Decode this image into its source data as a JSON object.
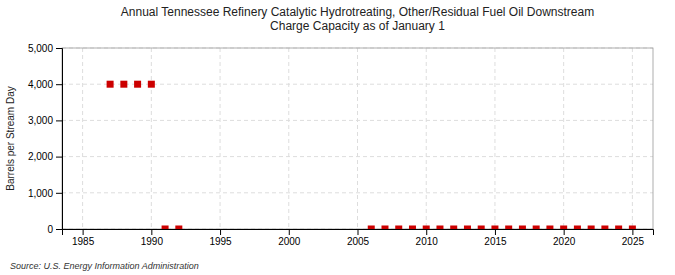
{
  "chart_data": {
    "type": "scatter",
    "title": "Annual Tennessee Refinery Catalytic Hydrotreating, Other/Residual Fuel Oil Downstream\nCharge Capacity as of January 1",
    "ylabel": "Barrels per Stream Day",
    "annotations": [
      "Source: U.S. Energy Information Administration"
    ],
    "x": [
      1987,
      1988,
      1989,
      1990,
      1991,
      1992,
      2006,
      2007,
      2008,
      2009,
      2010,
      2011,
      2012,
      2013,
      2014,
      2015,
      2016,
      2017,
      2018,
      2019,
      2020,
      2021,
      2022,
      2023,
      2024,
      2025
    ],
    "values": [
      4000,
      4000,
      4000,
      4000,
      0,
      0,
      0,
      0,
      0,
      0,
      0,
      0,
      0,
      0,
      0,
      0,
      0,
      0,
      0,
      0,
      0,
      0,
      0,
      0,
      0,
      0
    ],
    "color": "#cc0000",
    "marker": "square",
    "xlim": [
      1983.5,
      2026.5
    ],
    "xticks": [
      1985,
      1990,
      1995,
      2000,
      2005,
      2010,
      2015,
      2020,
      2025
    ],
    "ylim": [
      0,
      5000
    ],
    "yticks": [
      0,
      {
        "value": 1000,
        "label": "1,000"
      },
      {
        "value": 2000,
        "label": "2,000"
      },
      {
        "value": 3000,
        "label": "3,000"
      },
      {
        "value": 4000,
        "label": "4,000"
      },
      {
        "value": 5000,
        "label": "5,000"
      }
    ],
    "grid": true
  }
}
